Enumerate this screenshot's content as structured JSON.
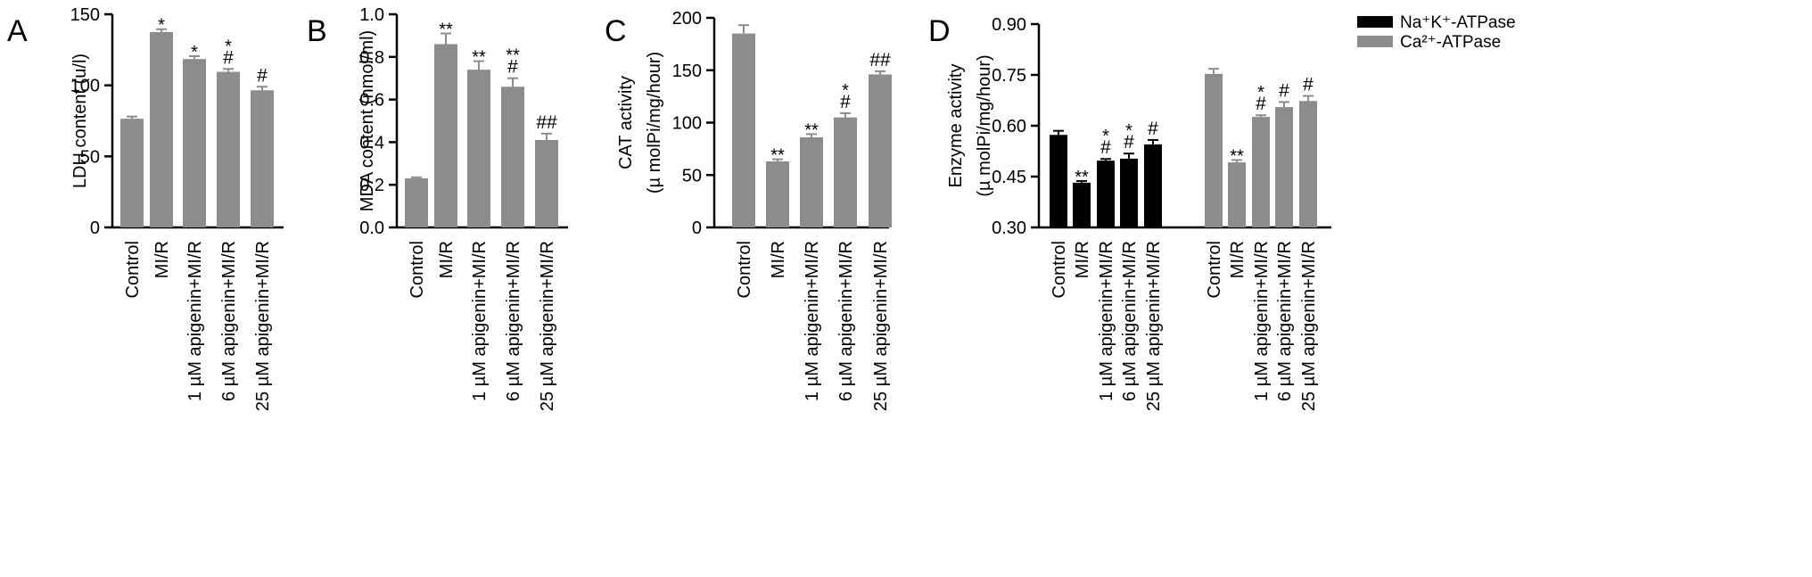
{
  "colors": {
    "gray_bar": "#8c8c8c",
    "black_bar": "#000000",
    "axis": "#000000"
  },
  "chart_data": [
    {
      "type": "bar",
      "panel_label": "A",
      "ylabel": [
        "LDH content (u/l)"
      ],
      "categories": [
        "Control",
        "MI/R",
        "1 µM apigenin+MI/R",
        "6 µM apigenin+MI/R",
        "25 µM apigenin+MI/R"
      ],
      "values": [
        76.5,
        137.5,
        118.5,
        109.5,
        96.5
      ],
      "errors": [
        1.5,
        2,
        2,
        2,
        2.5
      ],
      "annotations": [
        [],
        [
          "*"
        ],
        [
          "*"
        ],
        [
          "*",
          "#"
        ],
        [
          "#"
        ]
      ],
      "ylim": [
        0,
        150
      ],
      "yticks": [
        "0",
        "50",
        "100",
        "150"
      ]
    },
    {
      "type": "bar",
      "panel_label": "B",
      "ylabel": [
        "MDA content (nmol/ml)"
      ],
      "categories": [
        "Control",
        "MI/R",
        "1 µM apigenin+MI/R",
        "6 µM apigenin+MI/R",
        "25 µM apigenin+MI/R"
      ],
      "values": [
        0.23,
        0.86,
        0.74,
        0.66,
        0.41
      ],
      "errors": [
        0.005,
        0.05,
        0.04,
        0.04,
        0.03
      ],
      "annotations": [
        [],
        [
          "**"
        ],
        [
          "**"
        ],
        [
          "**",
          "#"
        ],
        [
          "##"
        ]
      ],
      "ylim": [
        0,
        1.0
      ],
      "yticks": [
        "0.0",
        "0.2",
        "0.4",
        "0.6",
        "0.8",
        "1.0"
      ]
    },
    {
      "type": "bar",
      "panel_label": "C",
      "ylabel": [
        "CAT activity",
        "(µ molPi/mg/hour)"
      ],
      "categories": [
        "Control",
        "MI/R",
        "1 µM apigenin+MI/R",
        "6 µM apigenin+MI/R",
        "25 µM apigenin+MI/R"
      ],
      "values": [
        185,
        63,
        86,
        105,
        146
      ],
      "errors": [
        8,
        2,
        3,
        4,
        3
      ],
      "annotations": [
        [],
        [
          "**"
        ],
        [
          "**"
        ],
        [
          "*",
          "#"
        ],
        [
          "##"
        ]
      ],
      "ylim": [
        0,
        200
      ],
      "yticks": [
        "0",
        "50",
        "100",
        "150",
        "200"
      ]
    },
    {
      "type": "bar",
      "panel_label": "D",
      "ylabel": [
        "Enzyme activity",
        "(µ molPi/mg/hour)"
      ],
      "categories": [
        "Control",
        "MI/R",
        "1 µM apigenin+MI/R",
        "6 µM apigenin+MI/R",
        "25 µM apigenin+MI/R"
      ],
      "series": [
        {
          "name": "Na⁺K⁺-ATPase",
          "color": "#000000",
          "values": [
            0.573,
            0.432,
            0.497,
            0.503,
            0.545
          ],
          "errors": [
            0.012,
            0.005,
            0.005,
            0.015,
            0.013
          ],
          "annotations": [
            [],
            [
              "**"
            ],
            [
              "*",
              "#"
            ],
            [
              "*",
              "#"
            ],
            [
              "#"
            ]
          ]
        },
        {
          "name": "Ca²⁺-ATPase",
          "color": "#8c8c8c",
          "values": [
            0.753,
            0.492,
            0.626,
            0.655,
            0.673
          ],
          "errors": [
            0.015,
            0.007,
            0.005,
            0.015,
            0.015
          ],
          "annotations": [
            [],
            [
              "**"
            ],
            [
              "*",
              "#"
            ],
            [
              "#"
            ],
            [
              "#"
            ]
          ]
        }
      ],
      "ylim": [
        0.3,
        0.9
      ],
      "yticks": [
        "0.30",
        "0.45",
        "0.60",
        "0.75",
        "0.90"
      ],
      "legend_position": "top-right"
    }
  ]
}
